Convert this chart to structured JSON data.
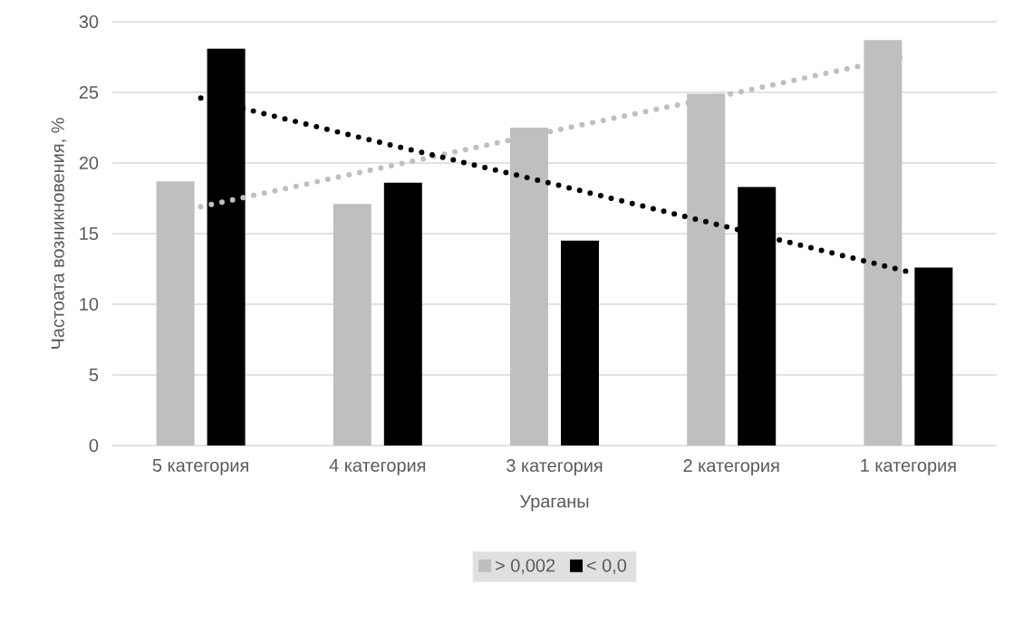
{
  "chart_data": {
    "type": "bar",
    "xlabel": "Ураганы",
    "ylabel": "Частоата возникновения, %",
    "categories": [
      "5 категория",
      "4 категория",
      "3 категория",
      "2 категория",
      "1 категория"
    ],
    "series": [
      {
        "name": "> 0,002",
        "color": "#bfbfbf",
        "values": [
          18.7,
          17.1,
          22.5,
          24.9,
          28.7
        ]
      },
      {
        "name": "< 0,0",
        "color": "#000000",
        "values": [
          28.1,
          18.6,
          14.5,
          18.3,
          12.6
        ]
      },
      {
        "type": "line",
        "color": "#bfbfbf",
        "line_style": "dotted",
        "values": [
          16.9,
          19.6,
          22.3,
          24.9,
          27.6
        ]
      },
      {
        "type": "line",
        "color": "#000000",
        "line_style": "dotted",
        "values": [
          24.6,
          21.5,
          18.5,
          15.4,
          12.3
        ]
      }
    ],
    "ylim": [
      0,
      30
    ],
    "yticks": [
      0,
      5,
      10,
      15,
      20,
      25,
      30
    ],
    "grid": "y",
    "legend": "bottom"
  }
}
